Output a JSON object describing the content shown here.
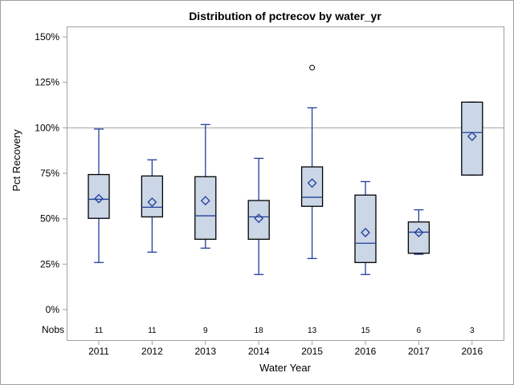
{
  "chart_data": {
    "type": "box",
    "title": "Distribution of pctrecov by water_yr",
    "xlabel": "Water Year",
    "ylabel": "Pct Recovery",
    "ylim": [
      -12,
      153
    ],
    "yticks": [
      "0%",
      "25%",
      "50%",
      "75%",
      "100%",
      "125%",
      "150%"
    ],
    "ytick_values": [
      0,
      25,
      50,
      75,
      100,
      125,
      150
    ],
    "reference_line": 100,
    "nobs_label": "Nobs",
    "grid": false,
    "colors": {
      "box_fill": "#cbd6e6",
      "whisker": "#1f3f9a",
      "box_edge": "#000000",
      "refline": "#a0a0a0",
      "frame": "#a0a0a0"
    },
    "categories": [
      "2011",
      "2012",
      "2013",
      "2014",
      "2015",
      "2016",
      "2017",
      "2016"
    ],
    "nobs": [
      "11",
      "11",
      "9",
      "18",
      "13",
      "15",
      "6",
      "3"
    ],
    "boxes": [
      {
        "min": 25.9,
        "q1": 50.2,
        "median": 60.7,
        "q3": 74.3,
        "max": 99.3,
        "mean": 61.0,
        "outliers": []
      },
      {
        "min": 31.6,
        "q1": 51.0,
        "median": 56.3,
        "q3": 73.5,
        "max": 82.4,
        "mean": 59.1,
        "outliers": []
      },
      {
        "min": 33.8,
        "q1": 38.7,
        "median": 51.6,
        "q3": 73.1,
        "max": 101.8,
        "mean": 59.9,
        "outliers": []
      },
      {
        "min": 19.3,
        "q1": 38.7,
        "median": 51.0,
        "q3": 60.0,
        "max": 83.2,
        "mean": 50.2,
        "outliers": []
      },
      {
        "min": 28.1,
        "q1": 56.8,
        "median": 61.8,
        "q3": 78.5,
        "max": 111.0,
        "mean": 69.6,
        "outliers": [
          133.1
        ]
      },
      {
        "min": 19.3,
        "q1": 25.9,
        "median": 36.5,
        "q3": 63.0,
        "max": 70.4,
        "mean": 42.4,
        "outliers": []
      },
      {
        "min": 30.4,
        "q1": 31.0,
        "median": 42.6,
        "q3": 48.2,
        "max": 54.9,
        "mean": 42.4,
        "outliers": []
      },
      {
        "min": 74.0,
        "q1": 74.0,
        "median": 97.4,
        "q3": 114.1,
        "max": 114.1,
        "mean": 95.3,
        "outliers": []
      }
    ]
  }
}
